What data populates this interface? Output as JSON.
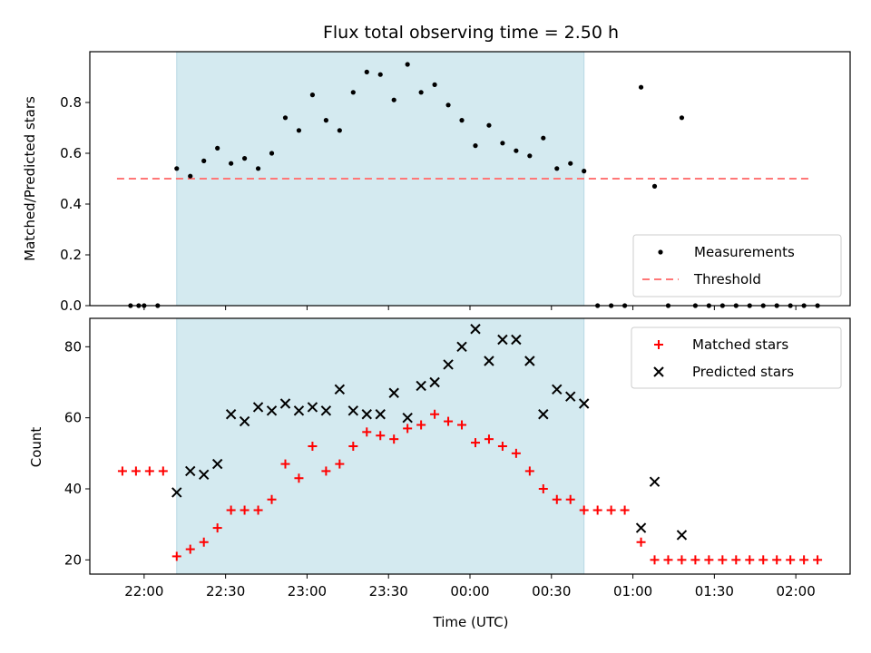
{
  "chart_data": [
    {
      "type": "scatter",
      "title": "Flux total observing time = 2.50 h",
      "xlabel": "",
      "ylabel": "Matched/Predicted stars",
      "ylim": [
        0,
        1.0
      ],
      "yticks": [
        "0.0",
        "0.2",
        "0.4",
        "0.6",
        "0.8"
      ],
      "threshold": {
        "name": "Threshold",
        "value": 0.5,
        "x_range": [
          "21:50",
          "02:05"
        ],
        "color": "#ff7777"
      },
      "shaded_interval": {
        "from": "22:12",
        "to": "00:42",
        "color": "#d4eaf0"
      },
      "legend": {
        "placement": "lower right",
        "entries": [
          "Measurements",
          "Threshold"
        ]
      },
      "series": [
        {
          "name": "Measurements",
          "color": "#000000",
          "x": [
            "21:55",
            "21:58",
            "22:00",
            "22:05",
            "22:12",
            "22:17",
            "22:22",
            "22:27",
            "22:32",
            "22:37",
            "22:42",
            "22:47",
            "22:52",
            "22:57",
            "23:02",
            "23:07",
            "23:12",
            "23:17",
            "23:22",
            "23:27",
            "23:32",
            "23:37",
            "23:42",
            "23:47",
            "23:52",
            "23:57",
            "00:02",
            "00:07",
            "00:12",
            "00:17",
            "00:22",
            "00:27",
            "00:32",
            "00:37",
            "00:42",
            "00:47",
            "00:52",
            "00:57",
            "01:03",
            "01:08",
            "01:13",
            "01:18",
            "01:23",
            "01:28",
            "01:33",
            "01:38",
            "01:43",
            "01:48",
            "01:53",
            "01:58",
            "02:03",
            "02:08"
          ],
          "y": [
            0,
            0,
            0,
            0,
            0.54,
            0.51,
            0.57,
            0.62,
            0.56,
            0.58,
            0.54,
            0.6,
            0.74,
            0.69,
            0.83,
            0.73,
            0.69,
            0.84,
            0.92,
            0.91,
            0.81,
            0.95,
            0.84,
            0.87,
            0.79,
            0.73,
            0.63,
            0.71,
            0.64,
            0.61,
            0.59,
            0.66,
            0.54,
            0.56,
            0.53,
            0,
            0,
            0,
            0.86,
            0.47,
            0,
            0.74,
            0,
            0,
            0,
            0,
            0,
            0,
            0,
            0,
            0,
            0
          ]
        }
      ]
    },
    {
      "type": "scatter",
      "title": "",
      "xlabel": "Time (UTC)",
      "ylabel": "Count",
      "ylim": [
        16,
        88
      ],
      "yticks": [
        "20",
        "40",
        "60",
        "80"
      ],
      "xlim": [
        "21:40",
        "02:20"
      ],
      "xticks": [
        "22:00",
        "22:30",
        "23:00",
        "23:30",
        "00:00",
        "00:30",
        "01:00",
        "01:30",
        "02:00"
      ],
      "shaded_interval": {
        "from": "22:12",
        "to": "00:42",
        "color": "#d4eaf0"
      },
      "legend": {
        "placement": "upper right",
        "entries": [
          "Matched stars",
          "Predicted stars"
        ]
      },
      "series": [
        {
          "name": "Matched stars",
          "marker": "plus",
          "color": "#ff0000",
          "x": [
            "21:52",
            "21:57",
            "22:02",
            "22:07",
            "22:12",
            "22:17",
            "22:22",
            "22:27",
            "22:32",
            "22:37",
            "22:42",
            "22:47",
            "22:52",
            "22:57",
            "23:02",
            "23:07",
            "23:12",
            "23:17",
            "23:22",
            "23:27",
            "23:32",
            "23:37",
            "23:42",
            "23:47",
            "23:52",
            "23:57",
            "00:02",
            "00:07",
            "00:12",
            "00:17",
            "00:22",
            "00:27",
            "00:32",
            "00:37",
            "00:42",
            "00:47",
            "00:52",
            "00:57",
            "01:03",
            "01:08",
            "01:13",
            "01:18",
            "01:23",
            "01:28",
            "01:33",
            "01:38",
            "01:43",
            "01:48",
            "01:53",
            "01:58",
            "02:03",
            "02:08"
          ],
          "y": [
            45,
            45,
            45,
            45,
            21,
            23,
            25,
            29,
            34,
            34,
            34,
            37,
            47,
            43,
            52,
            45,
            47,
            52,
            56,
            55,
            54,
            57,
            58,
            61,
            59,
            58,
            53,
            54,
            52,
            50,
            45,
            40,
            37,
            37,
            34,
            34,
            34,
            34,
            25,
            20,
            20,
            20,
            20,
            20,
            20,
            20,
            20,
            20,
            20,
            20,
            20,
            20
          ]
        },
        {
          "name": "Predicted stars",
          "marker": "x",
          "color": "#000000",
          "x": [
            "22:12",
            "22:17",
            "22:22",
            "22:27",
            "22:32",
            "22:37",
            "22:42",
            "22:47",
            "22:52",
            "22:57",
            "23:02",
            "23:07",
            "23:12",
            "23:17",
            "23:22",
            "23:27",
            "23:32",
            "23:37",
            "23:42",
            "23:47",
            "23:52",
            "23:57",
            "00:02",
            "00:07",
            "00:12",
            "00:17",
            "00:22",
            "00:27",
            "00:32",
            "00:37",
            "00:42",
            "01:03",
            "01:08",
            "01:18"
          ],
          "y": [
            39,
            45,
            44,
            47,
            61,
            59,
            63,
            62,
            64,
            62,
            63,
            62,
            68,
            62,
            61,
            61,
            67,
            60,
            69,
            70,
            75,
            80,
            85,
            76,
            82,
            82,
            76,
            61,
            68,
            66,
            64,
            29,
            42,
            27
          ]
        }
      ]
    }
  ]
}
